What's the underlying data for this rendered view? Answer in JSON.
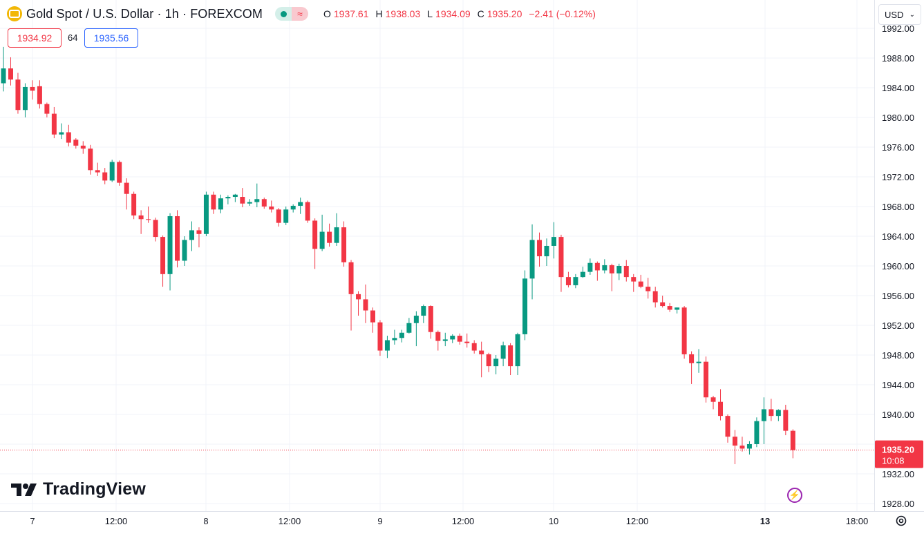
{
  "header": {
    "title": "Gold Spot / U.S. Dollar · 1h · FOREXCOM",
    "ohlc": [
      {
        "key": "O",
        "value": "1937.61"
      },
      {
        "key": "H",
        "value": "1938.03"
      },
      {
        "key": "L",
        "value": "1934.09"
      },
      {
        "key": "C",
        "value": "1935.20"
      }
    ],
    "change": "−2.41 (−0.12%)",
    "bid": "1934.92",
    "spread": "64",
    "ask": "1935.56",
    "currency": "USD",
    "pill_icon": "approx-equal-icon"
  },
  "colors": {
    "up": "#089981",
    "down": "#f23645",
    "grid": "#f0f3fa",
    "axis_text": "#131722",
    "last_price_bg": "#f23645"
  },
  "branding": {
    "logo_text": "TradingView"
  },
  "chart_data": {
    "type": "candlestick",
    "title": "Gold Spot / U.S. Dollar",
    "interval": "1h",
    "y_axis": {
      "side": "right",
      "ticks": [
        "1992.00",
        "1988.00",
        "1984.00",
        "1980.00",
        "1976.00",
        "1972.00",
        "1968.00",
        "1964.00",
        "1960.00",
        "1956.00",
        "1952.00",
        "1948.00",
        "1944.00",
        "1940.00",
        "1936.00",
        "1932.00",
        "1928.00"
      ]
    },
    "x_axis": {
      "ticks": [
        "7",
        "12:00",
        "8",
        "12:00",
        "9",
        "12:00",
        "10",
        "12:00",
        "13",
        "18:00"
      ]
    },
    "last_price": {
      "value": "1935.20",
      "countdown": "10:08"
    },
    "grid": true,
    "candles": [
      [
        1984.6,
        1989.5,
        1983.5,
        1986.6
      ],
      [
        1986.6,
        1988.1,
        1984.3,
        1985.1
      ],
      [
        1985.1,
        1986.0,
        1980.5,
        1981.0
      ],
      [
        1981.0,
        1984.6,
        1980.0,
        1984.1
      ],
      [
        1984.1,
        1985.0,
        1982.4,
        1983.6
      ],
      [
        1984.2,
        1985.0,
        1981.2,
        1981.8
      ],
      [
        1981.8,
        1982.0,
        1980.0,
        1980.5
      ],
      [
        1980.5,
        1981.4,
        1977.2,
        1977.7
      ],
      [
        1977.7,
        1979.2,
        1977.1,
        1978.0
      ],
      [
        1978.0,
        1979.0,
        1976.1,
        1976.6
      ],
      [
        1977.0,
        1977.2,
        1975.8,
        1976.2
      ],
      [
        1976.2,
        1976.8,
        1975.1,
        1975.8
      ],
      [
        1975.8,
        1976.3,
        1972.3,
        1972.9
      ],
      [
        1972.9,
        1973.9,
        1972.1,
        1972.6
      ],
      [
        1972.6,
        1973.2,
        1971.0,
        1971.5
      ],
      [
        1971.5,
        1974.3,
        1971.3,
        1974.0
      ],
      [
        1974.0,
        1974.2,
        1970.8,
        1971.2
      ],
      [
        1971.2,
        1971.8,
        1967.6,
        1969.7
      ],
      [
        1969.7,
        1970.0,
        1966.3,
        1966.8
      ],
      [
        1966.8,
        1967.5,
        1964.3,
        1966.3
      ],
      [
        1966.3,
        1968.0,
        1965.8,
        1966.2
      ],
      [
        1966.2,
        1966.5,
        1963.3,
        1963.9
      ],
      [
        1963.9,
        1964.1,
        1957.2,
        1958.9
      ],
      [
        1958.9,
        1967.1,
        1956.7,
        1966.7
      ],
      [
        1966.7,
        1967.5,
        1959.8,
        1960.7
      ],
      [
        1960.7,
        1964.0,
        1960.0,
        1963.5
      ],
      [
        1963.5,
        1966.0,
        1962.0,
        1964.8
      ],
      [
        1964.8,
        1965.2,
        1962.5,
        1964.3
      ],
      [
        1964.3,
        1970.0,
        1964.0,
        1969.6
      ],
      [
        1969.6,
        1970.0,
        1967.0,
        1967.6
      ],
      [
        1967.6,
        1969.6,
        1967.1,
        1969.1
      ],
      [
        1969.1,
        1969.5,
        1968.3,
        1969.3
      ],
      [
        1969.3,
        1969.7,
        1968.6,
        1969.6
      ],
      [
        1969.3,
        1970.5,
        1967.9,
        1968.4
      ],
      [
        1968.4,
        1969.0,
        1968.1,
        1968.6
      ],
      [
        1968.6,
        1971.1,
        1967.9,
        1969.0
      ],
      [
        1969.0,
        1969.2,
        1967.7,
        1968.0
      ],
      [
        1968.0,
        1968.8,
        1967.2,
        1967.6
      ],
      [
        1967.6,
        1967.8,
        1965.3,
        1965.8
      ],
      [
        1965.8,
        1968.0,
        1965.5,
        1967.6
      ],
      [
        1967.6,
        1968.3,
        1967.2,
        1968.1
      ],
      [
        1968.1,
        1969.2,
        1967.0,
        1968.6
      ],
      [
        1968.6,
        1968.8,
        1965.8,
        1966.1
      ],
      [
        1966.1,
        1966.4,
        1959.6,
        1962.3
      ],
      [
        1962.3,
        1966.9,
        1962.0,
        1964.6
      ],
      [
        1964.6,
        1965.7,
        1962.6,
        1963.1
      ],
      [
        1963.1,
        1967.1,
        1962.7,
        1965.2
      ],
      [
        1965.2,
        1966.0,
        1959.9,
        1960.5
      ],
      [
        1960.5,
        1960.8,
        1951.3,
        1956.2
      ],
      [
        1956.2,
        1956.6,
        1953.3,
        1955.5
      ],
      [
        1955.5,
        1957.5,
        1952.3,
        1954.0
      ],
      [
        1954.0,
        1954.4,
        1951.0,
        1952.4
      ],
      [
        1952.4,
        1952.7,
        1947.9,
        1948.6
      ],
      [
        1948.6,
        1950.6,
        1947.6,
        1950.0
      ],
      [
        1950.0,
        1951.4,
        1949.4,
        1950.3
      ],
      [
        1950.3,
        1951.4,
        1949.7,
        1951.0
      ],
      [
        1951.0,
        1953.0,
        1950.9,
        1952.3
      ],
      [
        1952.3,
        1953.9,
        1949.2,
        1953.3
      ],
      [
        1953.3,
        1954.8,
        1952.3,
        1954.6
      ],
      [
        1954.6,
        1954.7,
        1950.2,
        1951.1
      ],
      [
        1951.1,
        1951.3,
        1948.6,
        1949.9
      ],
      [
        1949.9,
        1951.0,
        1949.2,
        1950.1
      ],
      [
        1950.1,
        1950.8,
        1949.6,
        1950.6
      ],
      [
        1950.6,
        1950.9,
        1949.4,
        1949.8
      ],
      [
        1949.8,
        1950.9,
        1949.0,
        1949.6
      ],
      [
        1949.6,
        1950.0,
        1948.2,
        1948.6
      ],
      [
        1948.6,
        1949.8,
        1945.0,
        1948.1
      ],
      [
        1948.1,
        1948.3,
        1945.7,
        1946.5
      ],
      [
        1946.5,
        1948.0,
        1945.4,
        1947.5
      ],
      [
        1947.5,
        1949.8,
        1946.5,
        1949.3
      ],
      [
        1949.3,
        1949.6,
        1945.3,
        1946.5
      ],
      [
        1946.5,
        1951.0,
        1945.3,
        1950.8
      ],
      [
        1950.8,
        1959.4,
        1950.0,
        1958.3
      ],
      [
        1958.3,
        1965.6,
        1955.5,
        1963.5
      ],
      [
        1963.5,
        1964.5,
        1959.9,
        1961.3
      ],
      [
        1961.3,
        1963.7,
        1960.0,
        1962.7
      ],
      [
        1962.7,
        1965.9,
        1961.0,
        1963.9
      ],
      [
        1963.9,
        1964.2,
        1956.5,
        1958.5
      ],
      [
        1958.5,
        1959.2,
        1957.1,
        1957.4
      ],
      [
        1957.4,
        1958.9,
        1957.0,
        1958.5
      ],
      [
        1958.5,
        1959.9,
        1958.4,
        1959.2
      ],
      [
        1959.2,
        1961.0,
        1958.8,
        1960.4
      ],
      [
        1960.4,
        1960.6,
        1958.0,
        1959.4
      ],
      [
        1959.4,
        1960.9,
        1959.0,
        1960.1
      ],
      [
        1960.1,
        1960.3,
        1956.6,
        1959.0
      ],
      [
        1959.0,
        1960.3,
        1958.1,
        1960.0
      ],
      [
        1960.0,
        1960.8,
        1957.9,
        1958.5
      ],
      [
        1958.5,
        1958.9,
        1956.5,
        1957.9
      ],
      [
        1957.9,
        1958.8,
        1957.0,
        1957.2
      ],
      [
        1957.2,
        1958.4,
        1955.6,
        1956.6
      ],
      [
        1956.6,
        1957.2,
        1954.4,
        1955.1
      ],
      [
        1955.1,
        1956.0,
        1954.4,
        1954.6
      ],
      [
        1954.6,
        1955.0,
        1953.8,
        1954.1
      ],
      [
        1954.1,
        1954.4,
        1953.6,
        1954.4
      ],
      [
        1954.4,
        1954.6,
        1947.5,
        1948.1
      ],
      [
        1948.1,
        1948.5,
        1944.1,
        1946.9
      ],
      [
        1946.9,
        1948.8,
        1945.6,
        1947.1
      ],
      [
        1947.1,
        1947.8,
        1941.6,
        1942.3
      ],
      [
        1942.3,
        1942.5,
        1940.7,
        1941.7
      ],
      [
        1941.7,
        1943.4,
        1939.2,
        1939.8
      ],
      [
        1939.8,
        1940.0,
        1936.2,
        1937.0
      ],
      [
        1937.0,
        1937.9,
        1933.3,
        1935.8
      ],
      [
        1935.8,
        1937.0,
        1935.0,
        1935.4
      ],
      [
        1935.4,
        1936.4,
        1934.6,
        1936.0
      ],
      [
        1936.0,
        1939.6,
        1935.6,
        1939.1
      ],
      [
        1939.1,
        1942.3,
        1936.0,
        1940.7
      ],
      [
        1940.7,
        1942.1,
        1939.1,
        1939.8
      ],
      [
        1939.8,
        1940.7,
        1939.1,
        1940.6
      ],
      [
        1940.6,
        1941.3,
        1937.2,
        1937.8
      ],
      [
        1937.8,
        1938.0,
        1934.1,
        1935.2
      ]
    ]
  }
}
